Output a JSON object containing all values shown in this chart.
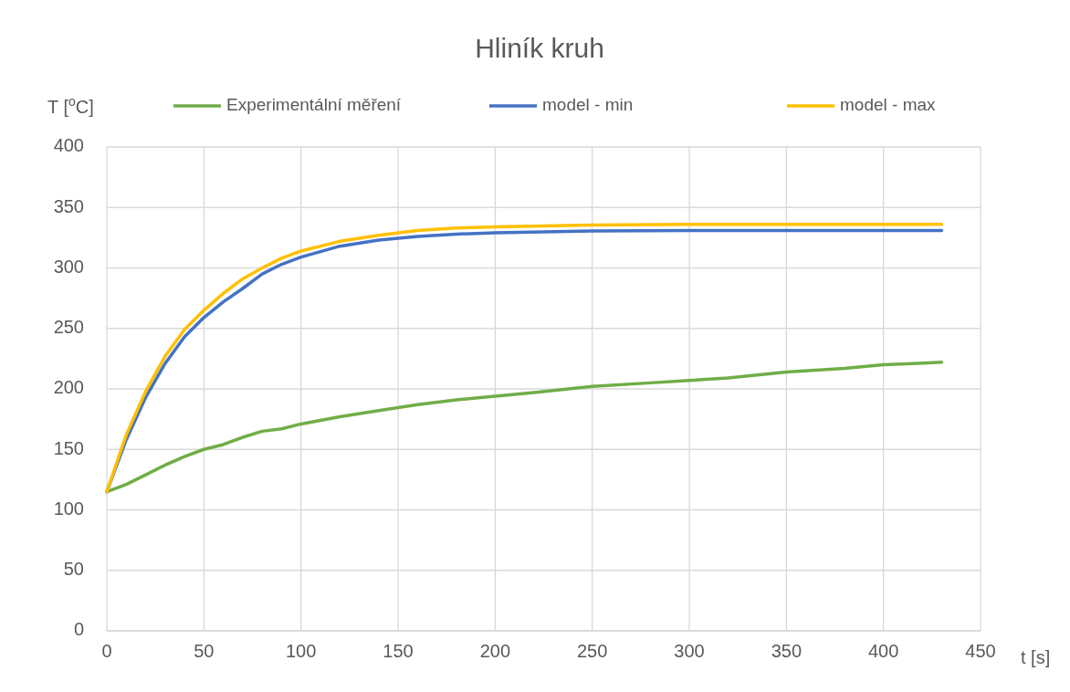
{
  "chart_data": {
    "type": "line",
    "title": "Hliník kruh",
    "xlabel": "t [s]",
    "ylabel": "T [$^{o}$C]",
    "xlim": [
      0,
      450
    ],
    "xticks": [
      0,
      50,
      100,
      150,
      200,
      250,
      300,
      350,
      400,
      450
    ],
    "ylim": [
      0,
      400
    ],
    "yticks": [
      0,
      50,
      100,
      150,
      200,
      250,
      300,
      350,
      400
    ],
    "grid": true,
    "legend": "top",
    "marker": "none",
    "line_style": "solid",
    "series": [
      {
        "name": "Experimentální měření",
        "color": "#70ad47",
        "x": [
          0,
          10,
          20,
          30,
          40,
          50,
          60,
          70,
          80,
          90,
          100,
          120,
          140,
          160,
          180,
          200,
          220,
          250,
          280,
          300,
          320,
          350,
          380,
          400,
          430
        ],
        "values": [
          115,
          121,
          129,
          137,
          144,
          150,
          154,
          160,
          165,
          167,
          171,
          177,
          182,
          187,
          191,
          194,
          197,
          202,
          205,
          207,
          209,
          214,
          217,
          220,
          222
        ]
      },
      {
        "name": "model - min",
        "color": "#4472c4",
        "x": [
          0,
          10,
          20,
          30,
          40,
          50,
          60,
          70,
          80,
          90,
          100,
          120,
          140,
          160,
          180,
          200,
          250,
          300,
          350,
          430
        ],
        "values": [
          115,
          158,
          193,
          221,
          243,
          259,
          272,
          283,
          295,
          303,
          309,
          318,
          323,
          326,
          328,
          329,
          330.5,
          331,
          331,
          331
        ]
      },
      {
        "name": "model - max",
        "color": "#ffc000",
        "x": [
          0,
          10,
          20,
          30,
          40,
          50,
          60,
          70,
          80,
          90,
          100,
          120,
          140,
          160,
          180,
          200,
          250,
          300,
          350,
          430
        ],
        "values": [
          115,
          162,
          198,
          227,
          249,
          265,
          279,
          291,
          300,
          308,
          314,
          322,
          327,
          331,
          333,
          334,
          335.5,
          336,
          336,
          336
        ]
      }
    ]
  }
}
